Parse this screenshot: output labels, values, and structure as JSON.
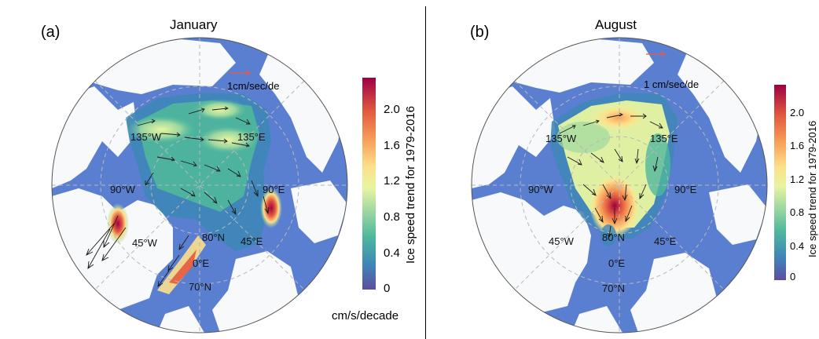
{
  "panels": [
    {
      "letter": "(a)",
      "title": "January",
      "reference_vector": "1cm/sec/de",
      "longitude_labels": [
        "135°W",
        "135°E",
        "90°W",
        "90°E",
        "45°W",
        "45°E",
        "0°E"
      ],
      "latitude_labels": [
        "80°N",
        "70°N"
      ],
      "colorbar": {
        "title": "Ice speed trend for 1979-2016",
        "ticks": [
          "2.0",
          "1.6",
          "1.2",
          "0.8",
          "0.4",
          "0"
        ],
        "range": [
          0,
          2.3
        ],
        "units": "cm/s/decade"
      }
    },
    {
      "letter": "(b)",
      "title": "August",
      "reference_vector": "1 cm/sec/de",
      "longitude_labels": [
        "135°W",
        "135°E",
        "90°W",
        "90°E",
        "45°W",
        "45°E",
        "0°E"
      ],
      "latitude_labels": [
        "80°N",
        "70°N"
      ],
      "colorbar": {
        "title": "Ice speed trend for 1979-2016",
        "ticks": [
          "2.0",
          "1.6",
          "1.2",
          "0.8",
          "0.4",
          "0"
        ],
        "range": [
          0,
          2.3
        ]
      }
    }
  ],
  "colors": {
    "land": "#f7f9fa",
    "ocean": "#5b7fd0",
    "colormap": [
      "#5d4ea0",
      "#3f87b8",
      "#4fb89c",
      "#9dd8a0",
      "#e8f5a0",
      "#fde08a",
      "#f8a25c",
      "#e35a3f",
      "#9e0142"
    ],
    "arrow": "#1a1a1a",
    "reference_arrow": "#e45a4a",
    "grid": "#b8b8b8"
  }
}
